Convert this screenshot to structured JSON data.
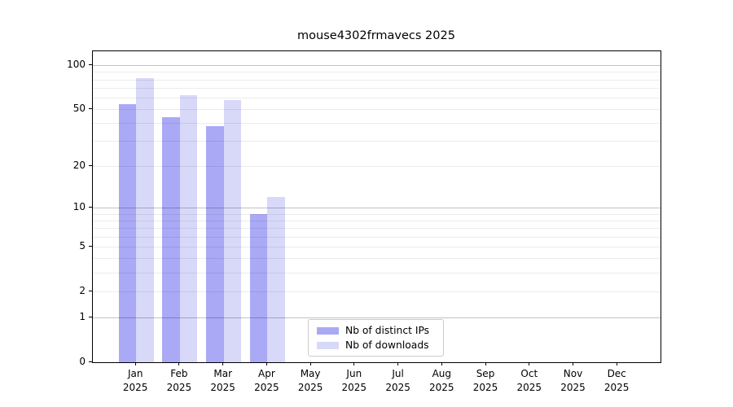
{
  "title": "mouse4302frmavecs 2025",
  "chart_data": {
    "type": "bar",
    "title": "mouse4302frmavecs 2025",
    "categories": [
      "Jan 2025",
      "Feb 2025",
      "Mar 2025",
      "Apr 2025",
      "May 2025",
      "Jun 2025",
      "Jul 2025",
      "Aug 2025",
      "Sep 2025",
      "Oct 2025",
      "Nov 2025",
      "Dec 2025"
    ],
    "series": [
      {
        "name": "Nb of distinct IPs",
        "color": "#a9a9f5",
        "values": [
          54,
          44,
          38,
          9,
          0,
          0,
          0,
          0,
          0,
          0,
          0,
          0
        ]
      },
      {
        "name": "Nb of downloads",
        "color": "#d8d8f9",
        "values": [
          82,
          62,
          58,
          12,
          0,
          0,
          0,
          0,
          0,
          0,
          0,
          0
        ]
      }
    ],
    "xlabel": "",
    "ylabel": "",
    "yscale": "log1p",
    "ylim": [
      0,
      125
    ],
    "yticks": [
      100,
      50,
      20,
      10,
      5,
      2,
      1,
      0
    ],
    "gridlines": {
      "major": [
        1,
        10,
        100
      ],
      "minor": [
        2,
        3,
        4,
        5,
        6,
        7,
        8,
        9,
        20,
        30,
        40,
        50,
        60,
        70,
        80,
        90
      ]
    },
    "grid": "on",
    "legend_position": "bottom-center-inside"
  }
}
